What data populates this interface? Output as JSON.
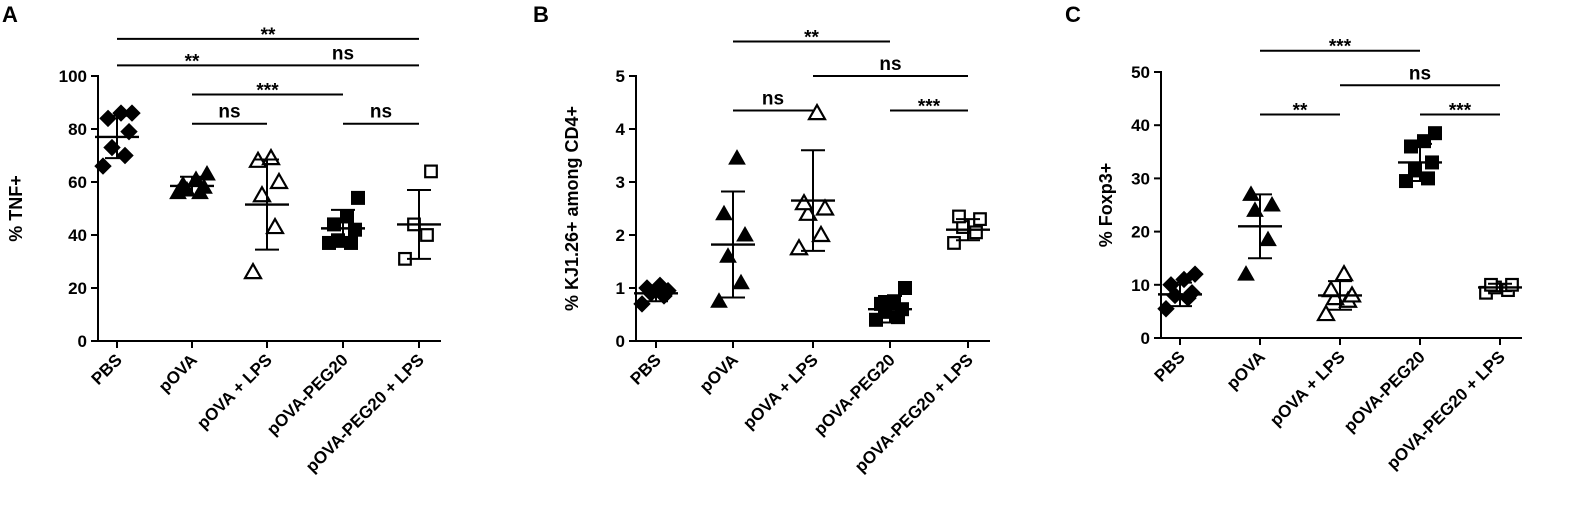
{
  "chart_data": [
    {
      "panel": "A",
      "type": "scatter",
      "ylabel": "% TNF+",
      "ylim": [
        0,
        100
      ],
      "yticks": [
        0,
        20,
        40,
        60,
        80,
        100
      ],
      "categories": [
        "PBS",
        "pOVA",
        "pOVA + LPS",
        "pOVA-PEG20",
        "pOVA-PEG20 + LPS"
      ],
      "groups": [
        {
          "marker": "diamond",
          "filled": true,
          "points": [
            66,
            70,
            73,
            79,
            84,
            86,
            86
          ],
          "mean": 77,
          "sd": 8
        },
        {
          "marker": "triangle",
          "filled": true,
          "points": [
            56,
            56,
            57,
            58,
            59,
            61,
            63
          ],
          "mean": 58.5,
          "sd": 3.5
        },
        {
          "marker": "triangle",
          "filled": false,
          "points": [
            26,
            43,
            55,
            60,
            68,
            69
          ],
          "mean": 51.5,
          "sd": 17
        },
        {
          "marker": "square",
          "filled": true,
          "points": [
            37,
            37,
            38,
            42,
            44,
            47,
            54
          ],
          "mean": 42.5,
          "sd": 7
        },
        {
          "marker": "square",
          "filled": false,
          "points": [
            31,
            40,
            44,
            64
          ],
          "mean": 44,
          "sd": 13
        }
      ],
      "significance": [
        {
          "from": 0,
          "to": 4,
          "label": "**",
          "y": 114
        },
        {
          "from": 0,
          "to": 2,
          "label": "**",
          "y": 104
        },
        {
          "from": 2,
          "to": 4,
          "label": "ns",
          "y": 104
        },
        {
          "from": 1,
          "to": 3,
          "label": "***",
          "y": 93
        },
        {
          "from": 1,
          "to": 2,
          "label": "ns",
          "y": 82
        },
        {
          "from": 3,
          "to": 4,
          "label": "ns",
          "y": 82
        }
      ]
    },
    {
      "panel": "B",
      "type": "scatter",
      "ylabel": "% KJ1.26+ among CD4+",
      "ylim": [
        0,
        5
      ],
      "yticks": [
        0,
        1,
        2,
        3,
        4,
        5
      ],
      "categories": [
        "PBS",
        "pOVA",
        "pOVA + LPS",
        "pOVA-PEG20",
        "pOVA-PEG20 + LPS"
      ],
      "groups": [
        {
          "marker": "diamond",
          "filled": true,
          "points": [
            0.7,
            0.85,
            0.9,
            0.95,
            1.0,
            1.05
          ],
          "mean": 0.9,
          "sd": 0.15
        },
        {
          "marker": "triangle",
          "filled": true,
          "points": [
            0.75,
            1.1,
            1.6,
            2.0,
            2.4,
            3.45
          ],
          "mean": 1.82,
          "sd": 1.0
        },
        {
          "marker": "triangle",
          "filled": false,
          "points": [
            1.75,
            2.0,
            2.4,
            2.5,
            2.6,
            4.3
          ],
          "mean": 2.65,
          "sd": 0.95
        },
        {
          "marker": "square",
          "filled": true,
          "points": [
            0.4,
            0.45,
            0.55,
            0.6,
            0.7,
            0.75,
            1.0
          ],
          "mean": 0.6,
          "sd": 0.25
        },
        {
          "marker": "square",
          "filled": false,
          "points": [
            1.85,
            2.05,
            2.15,
            2.3,
            2.35
          ],
          "mean": 2.1,
          "sd": 0.2
        }
      ],
      "significance": [
        {
          "from": 1,
          "to": 3,
          "label": "**",
          "y": 5.65
        },
        {
          "from": 2,
          "to": 4,
          "label": "ns",
          "y": 5.0
        },
        {
          "from": 1,
          "to": 2,
          "label": "ns",
          "y": 4.35
        },
        {
          "from": 3,
          "to": 4,
          "label": "***",
          "y": 4.35
        }
      ]
    },
    {
      "panel": "C",
      "type": "scatter",
      "ylabel": "% Foxp3+",
      "ylim": [
        0,
        50
      ],
      "yticks": [
        0,
        10,
        20,
        30,
        40,
        50
      ],
      "categories": [
        "PBS",
        "pOVA",
        "pOVA + LPS",
        "pOVA-PEG20",
        "pOVA-PEG20 + LPS"
      ],
      "groups": [
        {
          "marker": "diamond",
          "filled": true,
          "points": [
            5.5,
            7.5,
            8,
            8.5,
            10,
            11,
            12
          ],
          "mean": 8.2,
          "sd": 2.2
        },
        {
          "marker": "triangle",
          "filled": true,
          "points": [
            12,
            18.5,
            24,
            25,
            27
          ],
          "mean": 21,
          "sd": 6
        },
        {
          "marker": "triangle",
          "filled": false,
          "points": [
            4.5,
            7,
            7.5,
            8,
            9,
            12
          ],
          "mean": 8,
          "sd": 2.7
        },
        {
          "marker": "square",
          "filled": true,
          "points": [
            29.5,
            30,
            31.5,
            33,
            36,
            37,
            38.5
          ],
          "mean": 33,
          "sd": 3.5
        },
        {
          "marker": "square",
          "filled": false,
          "points": [
            8.5,
            9,
            9.5,
            10,
            10
          ],
          "mean": 9.5,
          "sd": 0.7
        }
      ],
      "significance": [
        {
          "from": 1,
          "to": 3,
          "label": "***",
          "y": 54
        },
        {
          "from": 2,
          "to": 4,
          "label": "ns",
          "y": 47.5
        },
        {
          "from": 1,
          "to": 2,
          "label": "**",
          "y": 42
        },
        {
          "from": 3,
          "to": 4,
          "label": "***",
          "y": 42
        }
      ]
    }
  ]
}
